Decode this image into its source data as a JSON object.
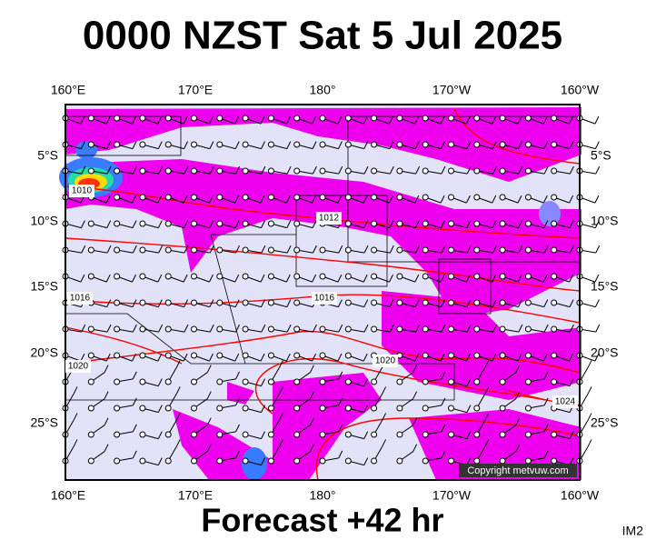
{
  "header": {
    "title": "0000 NZST Sat 5 Jul 2025"
  },
  "axes": {
    "top": [
      "160°E",
      "170°E",
      "180°",
      "170°W",
      "160°W"
    ],
    "bottom": [
      "160°E",
      "170°E",
      "180°",
      "170°W",
      "160°W"
    ],
    "left": [
      "5°S",
      "10°S",
      "15°S",
      "20°S",
      "25°S"
    ],
    "right": [
      "5°S",
      "10°S",
      "15°S",
      "20°S",
      "25°S"
    ]
  },
  "isobar_labels": [
    "1010",
    "1012",
    "1016",
    "1016",
    "1020",
    "1020",
    "1024"
  ],
  "copyright": "Copyright metvuw.com",
  "footer": {
    "forecast": "Forecast +42 hr",
    "code": "IM2"
  }
}
